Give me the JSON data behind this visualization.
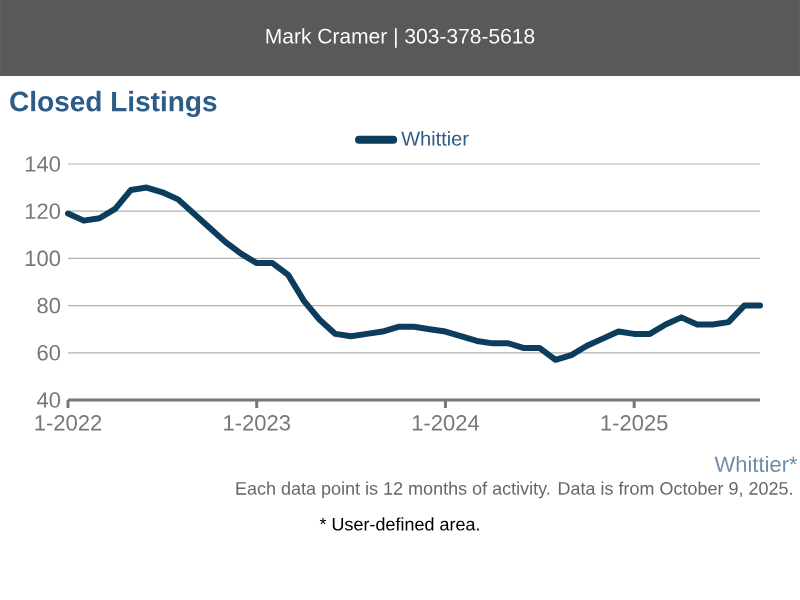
{
  "chart_data": {
    "type": "line",
    "title": "Closed Listings",
    "annotations": [
      "Mark Cramer | 303-378-5618",
      "Whittier*",
      "Each data point is 12 months of activity. Data is from October 9, 2025.",
      "* User-defined area."
    ],
    "x": [
      "2022-01",
      "2022-02",
      "2022-03",
      "2022-04",
      "2022-05",
      "2022-06",
      "2022-07",
      "2022-08",
      "2022-09",
      "2022-10",
      "2022-11",
      "2022-12",
      "2023-01",
      "2023-02",
      "2023-03",
      "2023-04",
      "2023-05",
      "2023-06",
      "2023-07",
      "2023-08",
      "2023-09",
      "2023-10",
      "2023-11",
      "2023-12",
      "2024-01",
      "2024-02",
      "2024-03",
      "2024-04",
      "2024-05",
      "2024-06",
      "2024-07",
      "2024-08",
      "2024-09",
      "2024-10",
      "2024-11",
      "2024-12",
      "2025-01",
      "2025-02",
      "2025-03",
      "2025-04",
      "2025-05",
      "2025-06",
      "2025-07",
      "2025-08",
      "2025-09"
    ],
    "series": [
      {
        "name": "Whittier",
        "color": "#0d3d5c",
        "values": [
          119,
          116,
          117,
          121,
          129,
          130,
          128,
          125,
          119,
          113,
          107,
          102,
          98,
          98,
          93,
          82,
          74,
          68,
          67,
          68,
          69,
          71,
          71,
          70,
          69,
          67,
          65,
          64,
          64,
          62,
          62,
          57,
          59,
          63,
          66,
          69,
          68,
          68,
          72,
          75,
          72,
          72,
          73,
          80,
          80
        ]
      }
    ],
    "xlim": [
      "2022-01",
      "2025-09"
    ],
    "xticks": [
      {
        "value": "2022-01",
        "label": "1-2022"
      },
      {
        "value": "2023-01",
        "label": "1-2023"
      },
      {
        "value": "2024-01",
        "label": "1-2024"
      },
      {
        "value": "2025-01",
        "label": "1-2025"
      }
    ],
    "ylim": [
      40,
      140
    ],
    "yticks": [
      40,
      60,
      80,
      100,
      120,
      140
    ],
    "grid": "y",
    "legend": "top",
    "marker": "none",
    "line_style": "solid"
  }
}
